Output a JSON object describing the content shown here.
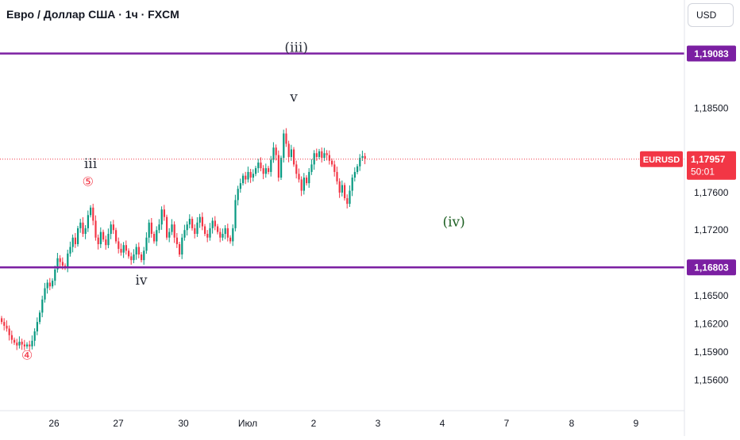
{
  "header": {
    "title": "Евро / Доллар США · 1ч · FXCM",
    "currency": "USD"
  },
  "colors": {
    "up": "#089981",
    "down": "#f23645",
    "level_line": "#7b1fa2",
    "price_tag": "#f23645",
    "axis_text": "#131722",
    "wave_text": "#2a2e39",
    "wave_green": "#1b5e20",
    "circle_red": "#f23645"
  },
  "chart_data": {
    "type": "candlestick",
    "symbol": "EURUSD",
    "x_ticks": [
      "26",
      "27",
      "30",
      "Июл",
      "2",
      "3",
      "4",
      "7",
      "8",
      "9"
    ],
    "y_ticks": [
      "1,18500",
      "1,17600",
      "1,17200",
      "1,16500",
      "1,16200",
      "1,15900",
      "1,15600"
    ],
    "ylim": [
      1.153,
      1.194
    ],
    "levels": [
      {
        "value": 1.19083,
        "label": "1,19083"
      },
      {
        "value": 1.16803,
        "label": "1,16803"
      }
    ],
    "current_price": {
      "label": "EURUSD",
      "value": "1,17957",
      "countdown": "50:01"
    },
    "annotations": [
      {
        "text": "(iii)",
        "x_index": 116,
        "price": 1.191
      },
      {
        "text": "v",
        "x_index": 115,
        "price": 1.1857
      },
      {
        "text": "iii",
        "x_index": 35,
        "price": 1.1786
      },
      {
        "text": "⑤",
        "x_index": 34,
        "price": 1.1767
      },
      {
        "text": "iv",
        "x_index": 55,
        "price": 1.1662
      },
      {
        "text": "(iv)",
        "x_index": 178,
        "price": 1.1724
      },
      {
        "text": "④",
        "x_index": 10,
        "price": 1.1582
      }
    ],
    "candles_close": [
      1.1622,
      1.1618,
      1.1615,
      1.1608,
      1.1603,
      1.16,
      1.1597,
      1.1601,
      1.1598,
      1.1596,
      1.1598,
      1.1596,
      1.1602,
      1.1612,
      1.1622,
      1.1632,
      1.1646,
      1.1658,
      1.1664,
      1.166,
      1.1666,
      1.1678,
      1.169,
      1.1686,
      1.1682,
      1.168,
      1.1695,
      1.1702,
      1.1712,
      1.1705,
      1.1722,
      1.1728,
      1.1716,
      1.1722,
      1.1736,
      1.1744,
      1.173,
      1.1712,
      1.1705,
      1.1718,
      1.171,
      1.1704,
      1.1716,
      1.1726,
      1.172,
      1.1708,
      1.17,
      1.1696,
      1.1704,
      1.1698,
      1.1692,
      1.1688,
      1.1694,
      1.1702,
      1.1694,
      1.1688,
      1.1698,
      1.1712,
      1.1728,
      1.1716,
      1.1708,
      1.172,
      1.1726,
      1.1742,
      1.1734,
      1.1712,
      1.1718,
      1.1726,
      1.1712,
      1.1705,
      1.1694,
      1.1712,
      1.172,
      1.1726,
      1.1732,
      1.1722,
      1.1716,
      1.1728,
      1.1734,
      1.1724,
      1.1716,
      1.1712,
      1.1722,
      1.173,
      1.1724,
      1.1718,
      1.1712,
      1.1716,
      1.1722,
      1.1712,
      1.1708,
      1.1722,
      1.1752,
      1.1764,
      1.177,
      1.1778,
      1.1774,
      1.1782,
      1.1776,
      1.178,
      1.1786,
      1.1792,
      1.1786,
      1.178,
      1.1786,
      1.1782,
      1.1795,
      1.1808,
      1.18,
      1.1776,
      1.1797,
      1.1823,
      1.1812,
      1.1798,
      1.1806,
      1.179,
      1.178,
      1.1774,
      1.1762,
      1.1776,
      1.177,
      1.1782,
      1.179,
      1.1802,
      1.1798,
      1.1804,
      1.1797,
      1.1802,
      1.18,
      1.1794,
      1.179,
      1.1782,
      1.1772,
      1.176,
      1.1768,
      1.1754,
      1.1748,
      1.1762,
      1.1776,
      1.1782,
      1.1788,
      1.1797,
      1.1799,
      1.1796
    ]
  }
}
